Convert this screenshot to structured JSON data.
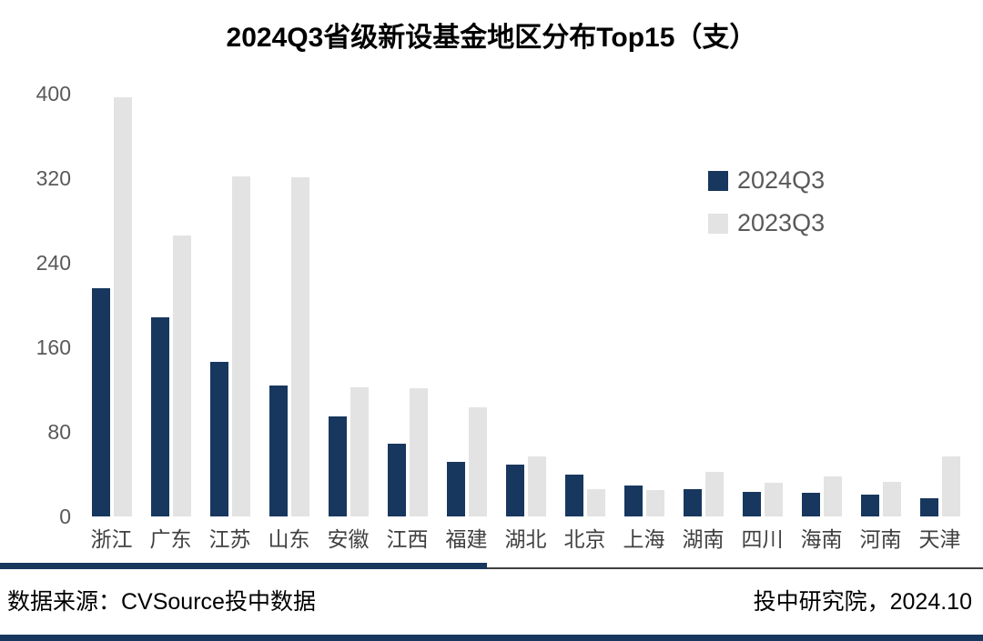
{
  "title": "2024Q3省级新设基金地区分布Top15（支）",
  "chart_data": {
    "type": "bar",
    "title": "2024Q3省级新设基金地区分布Top15（支）",
    "categories": [
      "浙江",
      "广东",
      "江苏",
      "山东",
      "安徽",
      "江西",
      "福建",
      "湖北",
      "北京",
      "上海",
      "湖南",
      "四川",
      "海南",
      "河南",
      "天津"
    ],
    "series": [
      {
        "name": "2024Q3",
        "color": "#17375E",
        "values": [
          216,
          188,
          146,
          124,
          95,
          69,
          52,
          49,
          40,
          29,
          26,
          23,
          22,
          21,
          17
        ]
      },
      {
        "name": "2023Q3",
        "color": "#E3E3E3",
        "values": [
          397,
          266,
          322,
          321,
          122,
          121,
          103,
          57,
          26,
          25,
          42,
          32,
          38,
          33,
          57
        ]
      }
    ],
    "xlabel": "",
    "ylabel": "",
    "ylim": [
      0,
      400
    ],
    "yticks": [
      0,
      80,
      160,
      240,
      320,
      400
    ],
    "grid": false,
    "legend_position": "top-right"
  },
  "footer": {
    "source": "数据来源：CVSource投中数据",
    "credit": "投中研究院，2024.10"
  },
  "colors": {
    "series_2024q3": "#17375E",
    "series_2023q3": "#E3E3E3",
    "axis_text": "#595959",
    "category_text": "#404040",
    "divider": "#17375E"
  }
}
